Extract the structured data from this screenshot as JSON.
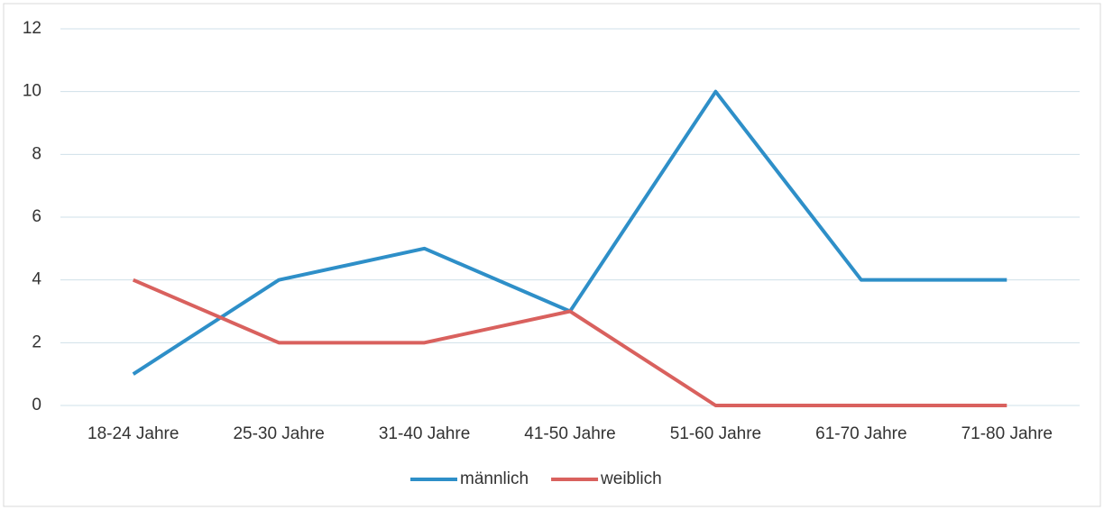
{
  "chart_data": {
    "type": "line",
    "categories": [
      "18-24 Jahre",
      "25-30 Jahre",
      "31-40 Jahre",
      "41-50 Jahre",
      "51-60 Jahre",
      "61-70 Jahre",
      "71-80 Jahre"
    ],
    "series": [
      {
        "name": "männlich",
        "color": "#2e8fc8",
        "values": [
          1,
          4,
          5,
          3,
          10,
          4,
          4
        ]
      },
      {
        "name": "weiblich",
        "color": "#d9615e",
        "values": [
          4,
          2,
          2,
          3,
          0,
          0,
          0
        ]
      }
    ],
    "ylim": [
      0,
      12
    ],
    "yticks": [
      0,
      2,
      4,
      6,
      8,
      10,
      12
    ],
    "grid": true,
    "legend": "bottom"
  }
}
